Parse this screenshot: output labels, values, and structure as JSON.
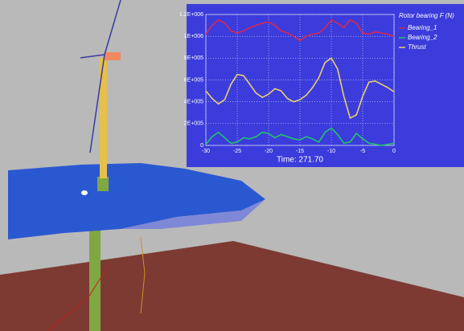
{
  "chart_data": {
    "type": "line",
    "legend_title": "Rotor bearing F (N)",
    "x_label": "Time: 271.70",
    "x": [
      -30,
      -29,
      -28,
      -27,
      -26,
      -25,
      -24,
      -23,
      -22,
      -21,
      -20,
      -19,
      -18,
      -17,
      -16,
      -15,
      -14,
      -13,
      -12,
      -11,
      -10,
      -9,
      -8,
      -7,
      -6,
      -5,
      -4,
      -3,
      -2,
      -1,
      0
    ],
    "series": [
      {
        "name": "Bearing_1",
        "color": "#d8284e",
        "values": [
          1020000,
          1100000,
          1150000,
          1120000,
          1050000,
          1030000,
          1050000,
          1080000,
          1100000,
          1120000,
          1130000,
          1100000,
          1050000,
          1030000,
          1000000,
          960000,
          1000000,
          1020000,
          1030000,
          1080000,
          1150000,
          1120000,
          1080000,
          1150000,
          1120000,
          1030000,
          1020000,
          1040000,
          1030000,
          1020000,
          1000000
        ]
      },
      {
        "name": "Bearing_2",
        "color": "#22c46a",
        "values": [
          10000,
          80000,
          120000,
          70000,
          20000,
          30000,
          70000,
          60000,
          80000,
          120000,
          110000,
          70000,
          100000,
          80000,
          60000,
          50000,
          80000,
          60000,
          30000,
          120000,
          160000,
          100000,
          20000,
          30000,
          110000,
          60000,
          20000,
          10000,
          0,
          10000,
          20000
        ]
      },
      {
        "name": "Thrust",
        "color": "#e8d070",
        "values": [
          500000,
          430000,
          380000,
          420000,
          560000,
          650000,
          640000,
          560000,
          480000,
          440000,
          470000,
          520000,
          500000,
          430000,
          400000,
          420000,
          460000,
          530000,
          620000,
          760000,
          800000,
          700000,
          450000,
          250000,
          280000,
          450000,
          580000,
          590000,
          560000,
          530000,
          490000
        ]
      }
    ],
    "xlim": [
      -30,
      0
    ],
    "xticks": [
      -30,
      -25,
      -20,
      -15,
      -10,
      -5,
      0
    ],
    "ylim": [
      0,
      1200000
    ],
    "yticks": [
      0,
      {
        "value": 200000,
        "label": "2E+005"
      },
      {
        "value": 400000,
        "label": "4E+005"
      },
      {
        "value": 600000,
        "label": "6E+005"
      },
      {
        "value": 800000,
        "label": "8E+005"
      },
      {
        "value": 1000000,
        "label": "1E+006"
      },
      {
        "value": 1200000,
        "label": "1.2E+006"
      }
    ],
    "grid": true
  }
}
